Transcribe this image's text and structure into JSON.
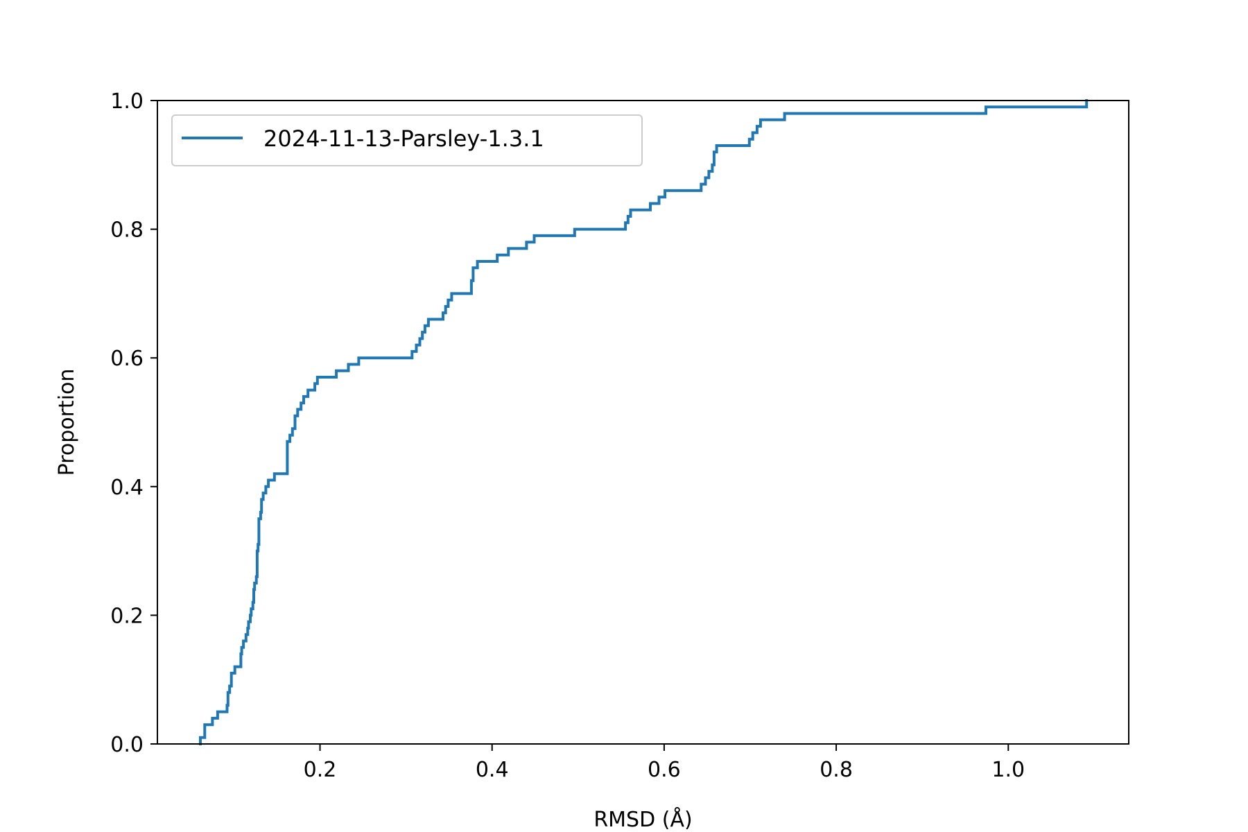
{
  "chart_data": {
    "type": "line",
    "drawstyle": "steps-post",
    "title": "",
    "xlabel": "RMSD (Å)",
    "ylabel": "Proportion",
    "xlim": [
      0.011,
      1.14
    ],
    "ylim": [
      0.0,
      1.0
    ],
    "xticks": [
      0.2,
      0.4,
      0.6,
      0.8,
      1.0
    ],
    "xtick_labels": [
      "0.2",
      "0.4",
      "0.6",
      "0.8",
      "1.0"
    ],
    "yticks": [
      0.0,
      0.2,
      0.4,
      0.6,
      0.8,
      1.0
    ],
    "ytick_labels": [
      "0.0",
      "0.2",
      "0.4",
      "0.6",
      "0.8",
      "1.0"
    ],
    "grid": false,
    "legend_position": "upper-left",
    "colors": {
      "series": "#1f77b4",
      "axes": "#000000",
      "legend_border": "#cccccc"
    },
    "series": [
      {
        "name": "2024-11-13-Parsley-1.3.1",
        "x": [
          0.061,
          0.066,
          0.075,
          0.081,
          0.092,
          0.093,
          0.095,
          0.097,
          0.101,
          0.108,
          0.109,
          0.111,
          0.114,
          0.116,
          0.117,
          0.119,
          0.12,
          0.122,
          0.123,
          0.124,
          0.126,
          0.127,
          0.128,
          0.129,
          0.131,
          0.132,
          0.134,
          0.137,
          0.14,
          0.147,
          0.162,
          0.165,
          0.168,
          0.171,
          0.174,
          0.178,
          0.181,
          0.186,
          0.194,
          0.197,
          0.219,
          0.233,
          0.245,
          0.307,
          0.312,
          0.316,
          0.319,
          0.322,
          0.326,
          0.343,
          0.346,
          0.349,
          0.353,
          0.376,
          0.378,
          0.383,
          0.406,
          0.419,
          0.44,
          0.449,
          0.496,
          0.555,
          0.558,
          0.561,
          0.584,
          0.594,
          0.601,
          0.643,
          0.648,
          0.652,
          0.656,
          0.658,
          0.661,
          0.699,
          0.703,
          0.708,
          0.712,
          0.74,
          0.767,
          0.974,
          1.091
        ],
        "y": [
          0.01,
          0.03,
          0.04,
          0.05,
          0.06,
          0.08,
          0.09,
          0.11,
          0.12,
          0.14,
          0.15,
          0.16,
          0.17,
          0.18,
          0.19,
          0.2,
          0.21,
          0.22,
          0.24,
          0.25,
          0.26,
          0.3,
          0.31,
          0.35,
          0.36,
          0.38,
          0.39,
          0.4,
          0.41,
          0.42,
          0.47,
          0.48,
          0.49,
          0.51,
          0.52,
          0.53,
          0.54,
          0.55,
          0.56,
          0.57,
          0.58,
          0.59,
          0.6,
          0.61,
          0.62,
          0.63,
          0.64,
          0.65,
          0.66,
          0.67,
          0.68,
          0.69,
          0.7,
          0.72,
          0.74,
          0.75,
          0.76,
          0.77,
          0.78,
          0.79,
          0.8,
          0.81,
          0.82,
          0.83,
          0.84,
          0.85,
          0.86,
          0.87,
          0.88,
          0.89,
          0.9,
          0.92,
          0.93,
          0.94,
          0.95,
          0.96,
          0.97,
          0.98,
          0.98,
          0.99,
          1.0
        ]
      }
    ]
  }
}
